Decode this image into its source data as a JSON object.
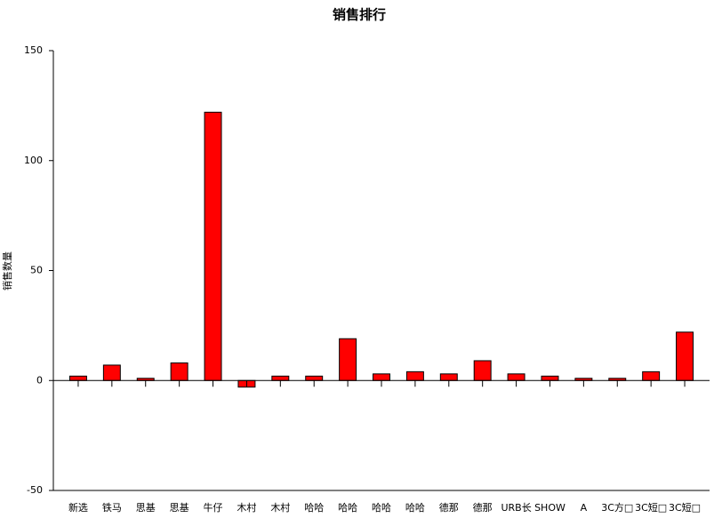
{
  "chart_data": {
    "type": "bar",
    "title": "销售排行",
    "y_label": "销售数量",
    "categories": [
      "新选",
      "铁马",
      "思基",
      "思基",
      "牛仔",
      "木村",
      "木村",
      "哈哈",
      "哈哈",
      "哈哈",
      "哈哈",
      "德那",
      "德那",
      "URB长",
      "SHOW",
      "A",
      "3C方□",
      "3C短□",
      "3C短□"
    ],
    "values": [
      2,
      7,
      1,
      8,
      122,
      -3,
      2,
      2,
      19,
      3,
      4,
      3,
      9,
      3,
      2,
      1,
      1,
      4,
      22
    ],
    "color": "#ff0000",
    "ylim": [
      -50,
      150
    ],
    "yticks": [
      -50,
      0,
      50,
      100,
      150
    ],
    "grid": false
  }
}
